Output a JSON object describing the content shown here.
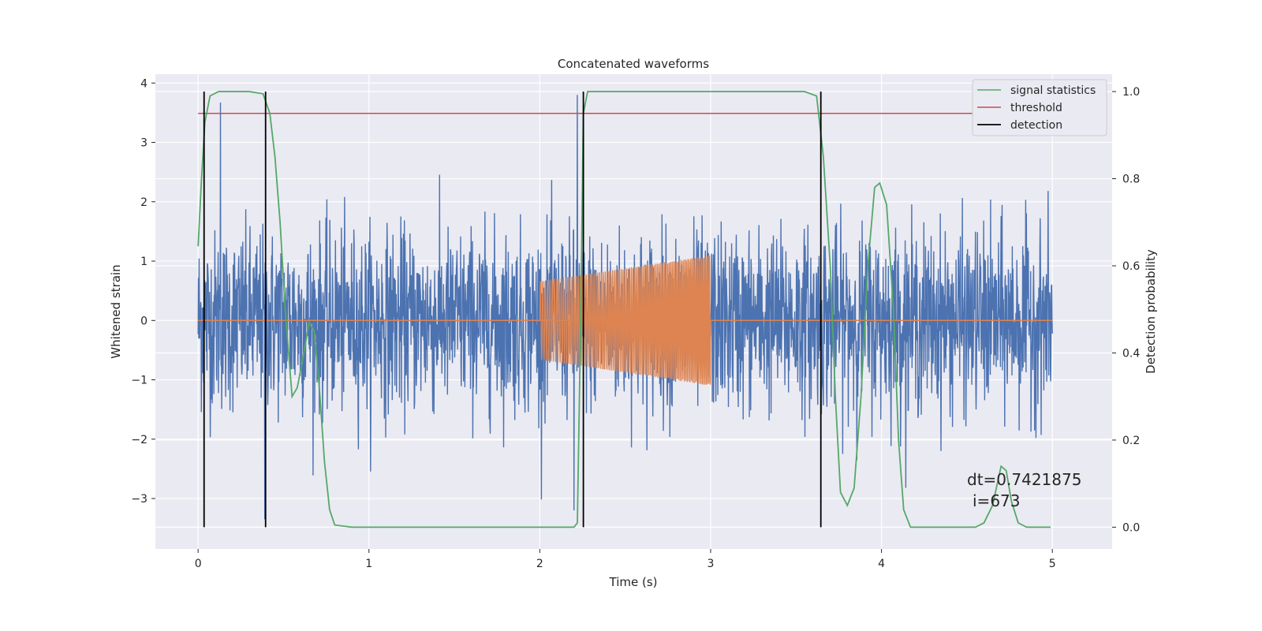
{
  "chart_data": {
    "type": "line",
    "title": "Concatenated waveforms",
    "xlabel": "Time (s)",
    "ylabel": "Whitened strain",
    "ylabel_right": "Detection probability",
    "xlim": [
      -0.25,
      5.35
    ],
    "ylim": [
      -3.85,
      4.15
    ],
    "ylim_right": [
      -0.05,
      1.04
    ],
    "xticks": [
      0,
      1,
      2,
      3,
      4,
      5
    ],
    "yticks": [
      -3,
      -2,
      -1,
      0,
      1,
      2,
      3,
      4
    ],
    "yticks_right": [
      0.0,
      0.2,
      0.4,
      0.6,
      0.8,
      1.0
    ],
    "grid": true,
    "legend_position": "top-right",
    "legend": [
      {
        "label": "signal statistics",
        "color": "#55a868"
      },
      {
        "label": "threshold",
        "color": "#c44e52"
      },
      {
        "label": "detection",
        "color": "#000000"
      }
    ],
    "strain_series": {
      "color": "#4c72b0",
      "x_range": [
        0,
        5
      ],
      "typical_amplitude": 0.75,
      "peak_points": [
        [
          0.13,
          3.67
        ],
        [
          2.22,
          3.8
        ],
        [
          2.2,
          -3.2
        ],
        [
          0.39,
          -3.35
        ]
      ]
    },
    "injection_series": {
      "color": "#dd8452",
      "x_range": [
        2.0,
        3.0
      ],
      "amplitude_start": 0.66,
      "amplitude_end": 1.1
    },
    "signal_statistics": {
      "color": "#55a868",
      "points": [
        [
          0.0,
          0.645
        ],
        [
          0.02,
          0.8
        ],
        [
          0.04,
          0.93
        ],
        [
          0.07,
          0.99
        ],
        [
          0.12,
          1.0
        ],
        [
          0.3,
          1.0
        ],
        [
          0.38,
          0.995
        ],
        [
          0.42,
          0.95
        ],
        [
          0.45,
          0.85
        ],
        [
          0.48,
          0.7
        ],
        [
          0.51,
          0.5
        ],
        [
          0.55,
          0.3
        ],
        [
          0.58,
          0.32
        ],
        [
          0.61,
          0.38
        ],
        [
          0.65,
          0.47
        ],
        [
          0.68,
          0.45
        ],
        [
          0.71,
          0.32
        ],
        [
          0.74,
          0.15
        ],
        [
          0.77,
          0.04
        ],
        [
          0.8,
          0.005
        ],
        [
          0.9,
          0.0
        ],
        [
          2.2,
          0.0
        ],
        [
          2.22,
          0.01
        ],
        [
          2.24,
          0.5
        ],
        [
          2.255,
          0.95
        ],
        [
          2.28,
          1.0
        ],
        [
          3.55,
          1.0
        ],
        [
          3.62,
          0.99
        ],
        [
          3.66,
          0.85
        ],
        [
          3.7,
          0.6
        ],
        [
          3.73,
          0.3
        ],
        [
          3.76,
          0.08
        ],
        [
          3.8,
          0.05
        ],
        [
          3.84,
          0.09
        ],
        [
          3.88,
          0.3
        ],
        [
          3.92,
          0.6
        ],
        [
          3.96,
          0.78
        ],
        [
          3.99,
          0.79
        ],
        [
          4.03,
          0.74
        ],
        [
          4.07,
          0.5
        ],
        [
          4.1,
          0.2
        ],
        [
          4.13,
          0.04
        ],
        [
          4.17,
          0.0
        ],
        [
          4.55,
          0.0
        ],
        [
          4.6,
          0.01
        ],
        [
          4.65,
          0.05
        ],
        [
          4.7,
          0.14
        ],
        [
          4.73,
          0.13
        ],
        [
          4.76,
          0.06
        ],
        [
          4.8,
          0.01
        ],
        [
          4.85,
          0.0
        ],
        [
          4.99,
          0.0
        ]
      ]
    },
    "threshold": {
      "value": 0.95,
      "x_range": [
        0,
        5
      ]
    },
    "detections": [
      0.035,
      0.395,
      2.255,
      3.645
    ],
    "annotations": [
      "dt=0.7421875",
      "i=673"
    ]
  }
}
